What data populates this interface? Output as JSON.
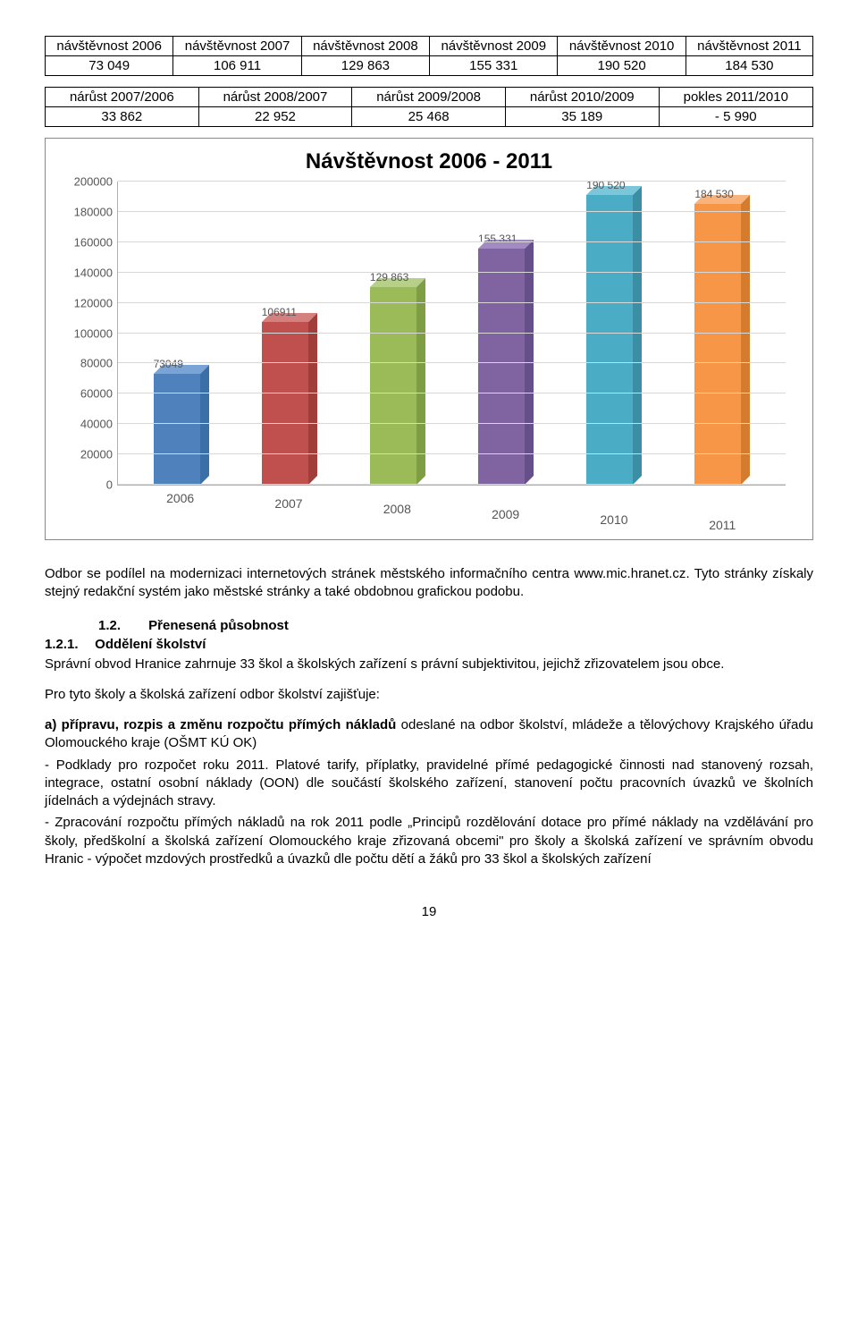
{
  "table1": {
    "headers": [
      "návštěvnost 2006",
      "návštěvnost 2007",
      "návštěvnost 2008",
      "návštěvnost 2009",
      "návštěvnost 2010",
      "návštěvnost 2011"
    ],
    "values": [
      "73 049",
      "106 911",
      "129 863",
      "155 331",
      "190 520",
      "184 530"
    ]
  },
  "table2": {
    "headers": [
      "nárůst 2007/2006",
      "nárůst 2008/2007",
      "nárůst 2009/2008",
      "nárůst 2010/2009",
      "pokles 2011/2010"
    ],
    "values": [
      "33 862",
      "22 952",
      "25 468",
      "35 189",
      "- 5 990"
    ]
  },
  "chart": {
    "title": "Návštěvnost 2006 - 2011",
    "type": "bar3d",
    "ymax": 200000,
    "ytick_step": 20000,
    "yticks": [
      "0",
      "20000",
      "40000",
      "60000",
      "80000",
      "100000",
      "120000",
      "140000",
      "160000",
      "180000",
      "200000"
    ],
    "categories": [
      "2006",
      "2007",
      "2008",
      "2009",
      "2010",
      "2011"
    ],
    "values": [
      73049,
      106911,
      129863,
      155331,
      190520,
      184530
    ],
    "value_labels": [
      "73049",
      "106911",
      "129 863",
      "155 331",
      "190 520",
      "184 530"
    ],
    "bar_colors": [
      "#4f81bd",
      "#c0504d",
      "#9bbb59",
      "#8064a2",
      "#4bacc6",
      "#f79646"
    ],
    "bar_colors_top": [
      "#7aa3d6",
      "#d4807e",
      "#b6d08a",
      "#a28bc0",
      "#7cc6da",
      "#f9b37c"
    ],
    "bar_colors_side": [
      "#3b6fa8",
      "#a03e3b",
      "#7f9e43",
      "#66508a",
      "#3a8fa5",
      "#d57b2e"
    ],
    "background": "#ffffff",
    "grid_color": "#d8d8d8",
    "axis_label_color": "#555555",
    "title_fontsize": 24,
    "label_fontsize": 13
  },
  "para1": "Odbor se podílel na modernizaci internetových stránek městského informačního centra ",
  "link1": "www.mic.hranet.cz",
  "para1b": ". Tyto stránky získaly stejný redakční systém jako městské stránky a také obdobnou grafickou podobu.",
  "h1_num": "1.2.",
  "h1_text": "Přenesená působnost",
  "h2_num": "1.2.1.",
  "h2_text": "Oddělení školství",
  "para2": "Správní obvod Hranice zahrnuje 33 škol a školských zařízení s právní subjektivitou, jejichž zřizovatelem jsou obce.",
  "para3": "Pro tyto školy a školská zařízení odbor školství zajišťuje:",
  "para4a": "a) přípravu, rozpis a změnu rozpočtu přímých nákladů",
  "para4b": " odeslané na odbor školství, mládeže a tělovýchovy Krajského úřadu Olomouckého kraje (OŠMT KÚ OK)",
  "para5": "  -  Podklady  pro rozpočet roku 2011. Platové tarify, příplatky, pravidelné přímé pedagogické činnosti nad stanovený rozsah, integrace, ostatní osobní náklady (OON) dle součástí školského zařízení, stanovení počtu pracovních úvazků ve školních jídelnách a výdejnách stravy.",
  "para6": "  -  Zpracování rozpočtu přímých nákladů na rok 2011 podle „Principů rozdělování dotace pro přímé náklady na vzdělávání pro školy, předškolní a školská zařízení Olomouckého kraje zřizovaná obcemi\" pro školy a školská zařízení ve správním obvodu Hranic  - výpočet mzdových prostředků a úvazků dle počtu dětí a žáků pro 33 škol a školských zařízení",
  "pagenum": "19"
}
